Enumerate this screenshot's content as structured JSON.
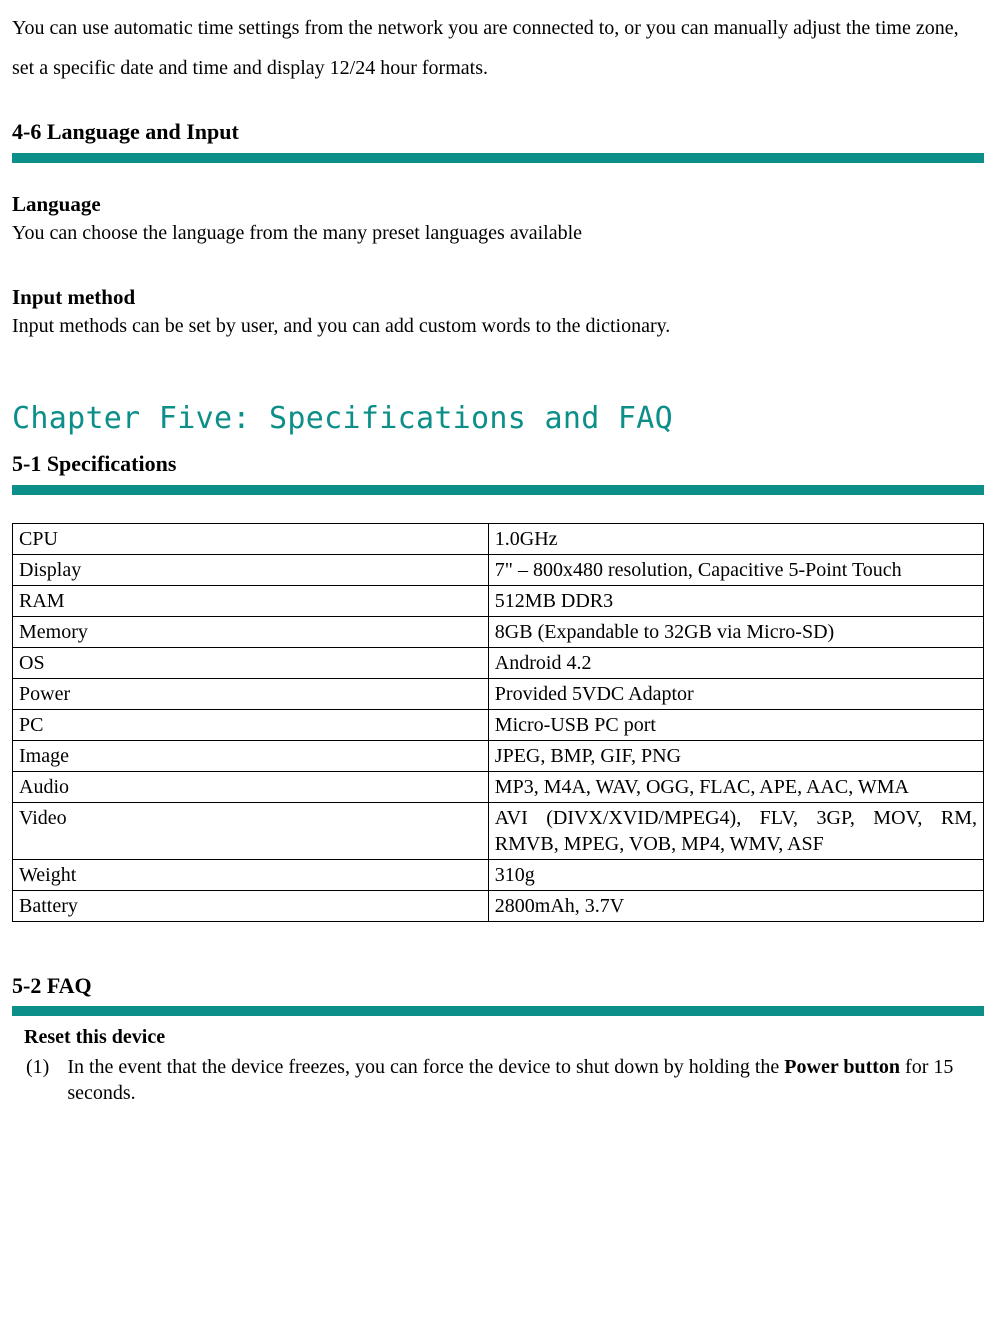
{
  "colors": {
    "divider": "#0b8f88",
    "chapter_title": "#0b8f88",
    "text": "#000000",
    "background": "#ffffff",
    "table_border": "#000000"
  },
  "intro": {
    "text": "You can use automatic time settings from the network you are connected to, or you can manually adjust the time zone, set a specific date and time and display 12/24 hour formats."
  },
  "section_4_6": {
    "heading": "4-6 Language and Input",
    "language": {
      "title": "Language",
      "text": "You can choose the language from the many preset languages available"
    },
    "input_method": {
      "title": "Input method",
      "text": "Input methods can be set by user, and you can add custom words to the dictionary."
    }
  },
  "chapter5": {
    "title": "Chapter Five: Specifications and FAQ"
  },
  "section_5_1": {
    "heading": "5-1 Specifications",
    "rows": [
      {
        "label": "CPU",
        "value": "1.0GHz"
      },
      {
        "label": "Display",
        "value": "7\" – 800x480 resolution, Capacitive 5-Point Touch"
      },
      {
        "label": "RAM",
        "value": "512MB DDR3"
      },
      {
        "label": "Memory",
        "value": "8GB (Expandable to 32GB via Micro-SD)"
      },
      {
        "label": "OS",
        "value": "Android 4.2"
      },
      {
        "label": "Power",
        "value": "Provided 5VDC Adaptor"
      },
      {
        "label": "PC",
        "value": "Micro-USB PC port"
      },
      {
        "label": "Image",
        "value": "JPEG, BMP, GIF, PNG"
      },
      {
        "label": "Audio",
        "value": "MP3, M4A, WAV, OGG, FLAC, APE, AAC, WMA"
      },
      {
        "label": "Video",
        "value": "AVI (DIVX/XVID/MPEG4), FLV, 3GP, MOV, RM, RMVB, MPEG, VOB, MP4, WMV, ASF"
      },
      {
        "label": "Weight",
        "value": "310g"
      },
      {
        "label": "Battery",
        "value": "2800mAh, 3.7V"
      }
    ],
    "justify_rows": [
      1,
      8,
      9
    ]
  },
  "section_5_2": {
    "heading": "5-2 FAQ",
    "faq_title": "Reset this device",
    "item": {
      "num": "(1)",
      "text_before": "In the event that the device freezes, you can force the device to shut down by holding the ",
      "bold": "Power button",
      "text_after": " for 15 seconds."
    }
  }
}
